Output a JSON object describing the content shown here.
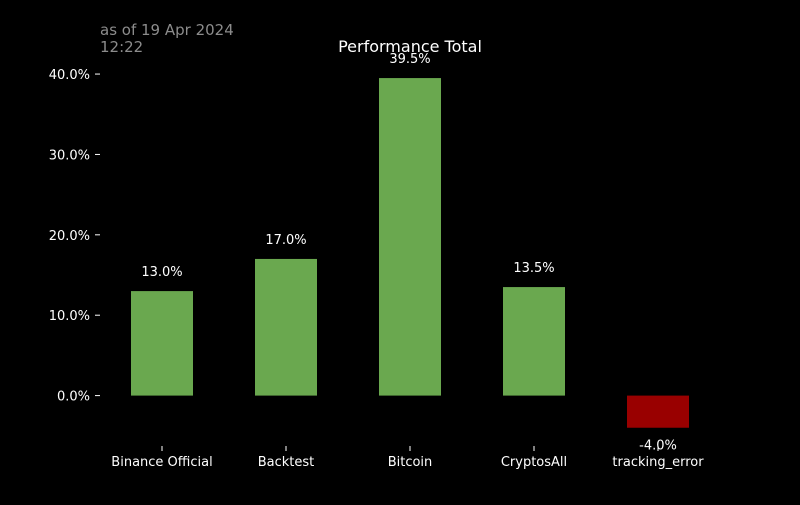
{
  "as_of": {
    "line1": "as of 19 Apr 2024",
    "line2": "12:22"
  },
  "colors": {
    "background": "#000000",
    "positive": "#6aa84f",
    "negative": "#990000",
    "text": "#ffffff",
    "muted": "#8c8c8c"
  },
  "chart_data": {
    "type": "bar",
    "title": "Performance Total",
    "xlabel": "",
    "ylabel": "",
    "categories": [
      "Binance Official",
      "Backtest",
      "Bitcoin",
      "CryptosAll",
      "tracking_error"
    ],
    "values": [
      13.0,
      17.0,
      39.5,
      13.5,
      -4.0
    ],
    "value_labels": [
      "13.0%",
      "17.0%",
      "39.5%",
      "13.5%",
      "-4.0%"
    ],
    "yticks": [
      0,
      10,
      20,
      30,
      40
    ],
    "ytick_labels": [
      "0.0%",
      "10.0%",
      "20.0%",
      "30.0%",
      "40.0%"
    ],
    "ylim": [
      -5.4,
      41.5
    ],
    "grid": false,
    "legend": "none"
  }
}
